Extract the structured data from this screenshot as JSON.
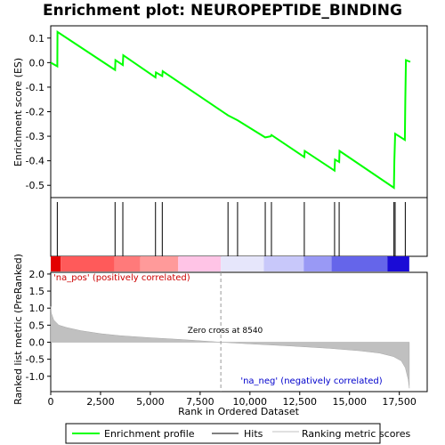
{
  "chart_data": {
    "type": "line",
    "title": "Enrichment plot: NEUROPEPTIDE_BINDING",
    "x_axis": {
      "label": "Rank in Ordered Dataset",
      "range": [
        0,
        18900
      ],
      "ticks": [
        0,
        2500,
        5000,
        7500,
        10000,
        12500,
        15000,
        17500
      ],
      "tick_labels": [
        "0",
        "2,500",
        "5,000",
        "7,500",
        "10,000",
        "12,500",
        "15,000",
        "17,500"
      ]
    },
    "es_panel": {
      "ylabel": "Enrichment score (ES)",
      "ylim": [
        -0.55,
        0.15
      ],
      "ticks": [
        0.1,
        0.0,
        -0.1,
        -0.2,
        -0.3,
        -0.4,
        -0.5
      ],
      "tick_labels": [
        "0.1",
        "0.0",
        "-0.1",
        "-0.2",
        "-0.3",
        "-0.4",
        "-0.5"
      ],
      "series_name": "Enrichment profile",
      "color": "#00ff00",
      "points": [
        [
          0,
          0.0
        ],
        [
          330,
          -0.015
        ],
        [
          340,
          0.125
        ],
        [
          3230,
          -0.03
        ],
        [
          3250,
          0.01
        ],
        [
          3620,
          -0.01
        ],
        [
          3640,
          0.03
        ],
        [
          5260,
          -0.06
        ],
        [
          5280,
          -0.04
        ],
        [
          5600,
          -0.055
        ],
        [
          5620,
          -0.035
        ],
        [
          8900,
          -0.215
        ],
        [
          9380,
          -0.235
        ],
        [
          10770,
          -0.305
        ],
        [
          11050,
          -0.3
        ],
        [
          11080,
          -0.295
        ],
        [
          12730,
          -0.385
        ],
        [
          12750,
          -0.36
        ],
        [
          14250,
          -0.44
        ],
        [
          14270,
          -0.395
        ],
        [
          14480,
          -0.405
        ],
        [
          14500,
          -0.36
        ],
        [
          17230,
          -0.51
        ],
        [
          17250,
          -0.4
        ],
        [
          17290,
          -0.29
        ],
        [
          17780,
          -0.315
        ],
        [
          17800,
          -0.155
        ],
        [
          17830,
          0.01
        ],
        [
          18050,
          0.003
        ]
      ]
    },
    "hits": {
      "series_name": "Hits",
      "ranks": [
        330,
        3230,
        3620,
        5260,
        5600,
        8900,
        9380,
        10770,
        11080,
        12730,
        14250,
        14480,
        17230,
        17290,
        17800
      ]
    },
    "color_bar": {
      "segments": [
        {
          "from": 0,
          "to": 500,
          "color": "#e30000"
        },
        {
          "from": 500,
          "to": 3200,
          "color": "#ff5a5a"
        },
        {
          "from": 3200,
          "to": 4500,
          "color": "#ff7a7a"
        },
        {
          "from": 4500,
          "to": 6400,
          "color": "#ff9a9a"
        },
        {
          "from": 6400,
          "to": 8540,
          "color": "#ffc4e6"
        },
        {
          "from": 8540,
          "to": 10700,
          "color": "#e6e6fb"
        },
        {
          "from": 10700,
          "to": 12700,
          "color": "#c8c8fa"
        },
        {
          "from": 12700,
          "to": 14100,
          "color": "#9999f5"
        },
        {
          "from": 14100,
          "to": 16900,
          "color": "#6565ea"
        },
        {
          "from": 16900,
          "to": 18000,
          "color": "#1a0bd6"
        }
      ]
    },
    "metric_panel": {
      "ylabel": "Ranked list metric (PreRanked)",
      "ylim": [
        -1.45,
        2.05
      ],
      "ticks": [
        2.0,
        1.5,
        1.0,
        0.5,
        0.0,
        -0.5,
        -1.0
      ],
      "tick_labels": [
        "2.0",
        "1.5",
        "1.0",
        "0.5",
        "0.0",
        "-0.5",
        "-1.0"
      ],
      "series_name": "Ranking metric scores",
      "fill_color": "#c0c0c0",
      "curve": [
        [
          0,
          1.05
        ],
        [
          30,
          0.85
        ],
        [
          150,
          0.65
        ],
        [
          400,
          0.5
        ],
        [
          800,
          0.43
        ],
        [
          1500,
          0.34
        ],
        [
          2500,
          0.25
        ],
        [
          3500,
          0.19
        ],
        [
          5000,
          0.13
        ],
        [
          6500,
          0.08
        ],
        [
          8540,
          0.0
        ],
        [
          10000,
          -0.05
        ],
        [
          12000,
          -0.11
        ],
        [
          14000,
          -0.18
        ],
        [
          15500,
          -0.25
        ],
        [
          16500,
          -0.32
        ],
        [
          17200,
          -0.42
        ],
        [
          17600,
          -0.55
        ],
        [
          17800,
          -0.75
        ],
        [
          17950,
          -1.1
        ],
        [
          18000,
          -1.35
        ]
      ],
      "zero_cross_rank": 8540,
      "zero_cross_label": "Zero cross at 8540",
      "pos_label": "'na_pos' (positively correlated)",
      "neg_label": "'na_neg' (negatively correlated)"
    },
    "legend": {
      "placement": "bottom",
      "items": [
        {
          "label": "Enrichment profile",
          "color": "#00ff00"
        },
        {
          "label": "Hits",
          "color": "#000000"
        },
        {
          "label": "Ranking metric scores",
          "color": "#c0c0c0"
        }
      ]
    },
    "ylabel_metric": "Ranked list metric (PreRanked)"
  }
}
